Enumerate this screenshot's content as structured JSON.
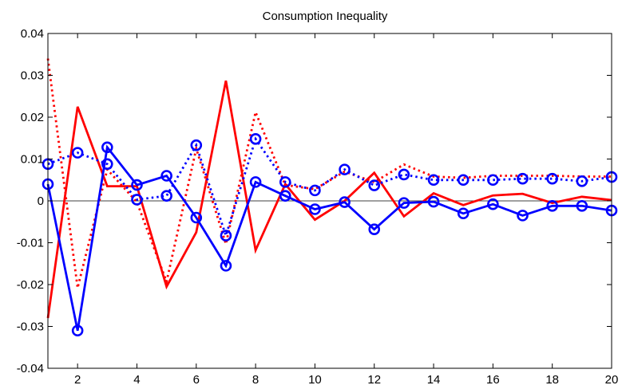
{
  "chart_data": {
    "type": "line",
    "title": "Consumption Inequality",
    "xlabel": "",
    "ylabel": "",
    "xlim": [
      1,
      20
    ],
    "ylim": [
      -0.04,
      0.04
    ],
    "xticks": [
      2,
      4,
      6,
      8,
      10,
      12,
      14,
      16,
      18,
      20
    ],
    "yticks": [
      -0.04,
      -0.03,
      -0.02,
      -0.01,
      0,
      0.01,
      0.02,
      0.03,
      0.04
    ],
    "ytick_labels": [
      "-0.04",
      "-0.03",
      "-0.02",
      "-0.01",
      "0",
      "0.01",
      "0.02",
      "0.03",
      "0.04"
    ],
    "grid": false,
    "zero_line": true,
    "x": [
      1,
      2,
      3,
      4,
      5,
      6,
      7,
      8,
      9,
      10,
      11,
      12,
      13,
      14,
      15,
      16,
      17,
      18,
      19,
      20
    ],
    "series": [
      {
        "color": "#ff0000",
        "line_style": "solid",
        "marker": "none",
        "values": [
          -0.028,
          0.0225,
          0.0035,
          0.0035,
          -0.0205,
          -0.0075,
          0.0287,
          -0.0118,
          0.004,
          -0.0045,
          0.0,
          0.0067,
          -0.0037,
          0.0018,
          -0.001,
          0.0013,
          0.0017,
          -0.0005,
          0.001,
          0.0002
        ]
      },
      {
        "color": "#ff0000",
        "line_style": "dotted",
        "marker": "none",
        "values": [
          0.034,
          -0.0208,
          0.0075,
          -0.0003,
          -0.0193,
          0.0125,
          -0.0103,
          0.0212,
          0.0038,
          0.0028,
          0.007,
          0.0045,
          0.0087,
          0.0058,
          0.0055,
          0.006,
          0.006,
          0.006,
          0.0058,
          0.0058
        ]
      },
      {
        "color": "#0000ff",
        "line_style": "solid",
        "marker": "circle",
        "values": [
          0.004,
          -0.031,
          0.0128,
          0.0038,
          0.006,
          -0.004,
          -0.0155,
          0.0045,
          0.0012,
          -0.002,
          -0.0003,
          -0.0068,
          -0.0005,
          -0.0002,
          -0.003,
          -0.0008,
          -0.0035,
          -0.0012,
          -0.0012,
          -0.0023
        ]
      },
      {
        "color": "#0000ff",
        "line_style": "dotted",
        "marker": "circle",
        "values": [
          0.0088,
          0.0115,
          0.0088,
          0.0003,
          0.0012,
          0.0133,
          -0.0083,
          0.0148,
          0.0045,
          0.0025,
          0.0075,
          0.0037,
          0.0063,
          0.005,
          0.005,
          0.005,
          0.0053,
          0.0053,
          0.0047,
          0.0057
        ]
      }
    ]
  }
}
